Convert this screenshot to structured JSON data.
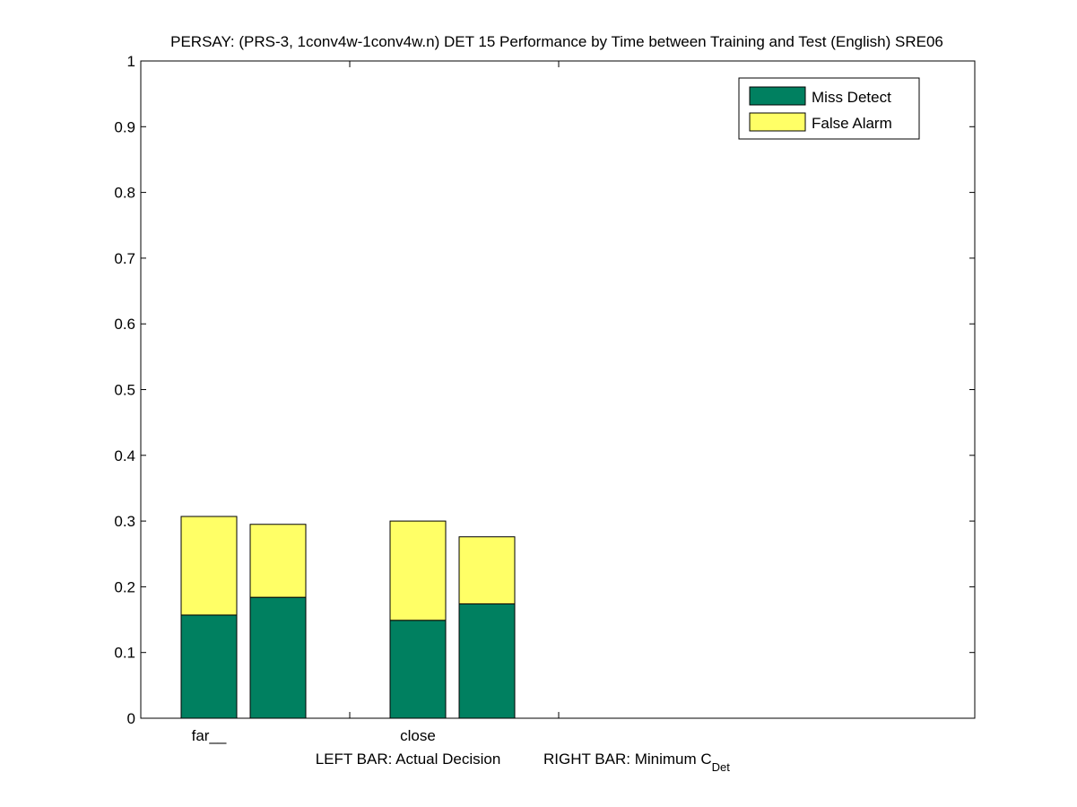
{
  "chart_data": {
    "type": "bar",
    "stacked": true,
    "title": "PERSAY: (PRS-3, 1conv4w-1conv4w.n) DET 15 Performance by Time between Training and Test (English) SRE06",
    "xlabel_left": "LEFT BAR: Actual Decision",
    "xlabel_right": "RIGHT BAR: Minimum C",
    "xlabel_right_subscript": "Det",
    "ylim": [
      0,
      1
    ],
    "yticks": [
      "0",
      "0.1",
      "0.2",
      "0.3",
      "0.4",
      "0.5",
      "0.6",
      "0.7",
      "0.8",
      "0.9",
      "1"
    ],
    "categories": [
      "far__",
      "close"
    ],
    "grid": false,
    "legend_position": "top-right",
    "series": [
      {
        "name": "Miss Detect",
        "color": "#008060",
        "values": [
          [
            0.157,
            0.184
          ],
          [
            0.149,
            0.174
          ]
        ]
      },
      {
        "name": "False Alarm",
        "color": "#ffff66",
        "values": [
          [
            0.15,
            0.111
          ],
          [
            0.151,
            0.102
          ]
        ]
      }
    ]
  }
}
